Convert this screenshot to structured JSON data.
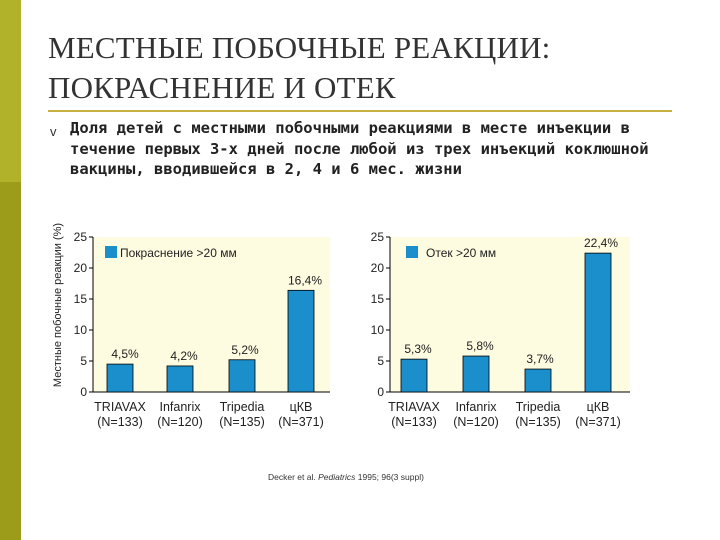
{
  "title_lines": [
    "МЕСТНЫЕ ПОБОЧНЫЕ РЕАКЦИИ:",
    "ПОКРАСНЕНИЕ И ОТЕК"
  ],
  "bullet": "v",
  "subtitle": "Доля детей с местными побочными реакциями в месте инъекции в течение первых 3-х дней после любой из трех инъекций коклюшной вакцины, вводившейся в 2, 4 и 6 мес. жизни",
  "ylabel": "Местные побочные реакции (%)",
  "source": {
    "prefix": "Decker et al. ",
    "journal": "Pediatrics",
    "suffix": " 1995; 96(3 suppl)"
  },
  "colors": {
    "bar": "#1a8fcb",
    "plot_bg": "#fdfbe0",
    "accent": "#9c9c1a"
  },
  "chart_data": [
    {
      "type": "bar",
      "legend": "Покраснение >20 мм",
      "categories": [
        [
          "TRIAVAX",
          "(N=133)"
        ],
        [
          "Infanrix",
          "(N=120)"
        ],
        [
          "Tripedia",
          "(N=135)"
        ],
        [
          "цКВ",
          "(N=371)"
        ]
      ],
      "values": [
        4.5,
        4.2,
        5.2,
        16.4
      ],
      "data_labels": [
        "4,5%",
        "4,2%",
        "5,2%",
        "16,4%"
      ],
      "yticks": [
        0,
        5,
        10,
        15,
        20,
        25
      ],
      "ylim": [
        0,
        25
      ]
    },
    {
      "type": "bar",
      "legend": "Отек >20 мм",
      "categories": [
        [
          "TRIAVAX",
          "(N=133)"
        ],
        [
          "Infanrix",
          "(N=120)"
        ],
        [
          "Tripedia",
          "(N=135)"
        ],
        [
          "цКВ",
          "(N=371)"
        ]
      ],
      "values": [
        5.3,
        5.8,
        3.7,
        22.4
      ],
      "data_labels": [
        "5,3%",
        "5,8%",
        "3,7%",
        "22,4%"
      ],
      "yticks": [
        0,
        5,
        10,
        15,
        20,
        25
      ],
      "ylim": [
        0,
        25
      ]
    }
  ]
}
